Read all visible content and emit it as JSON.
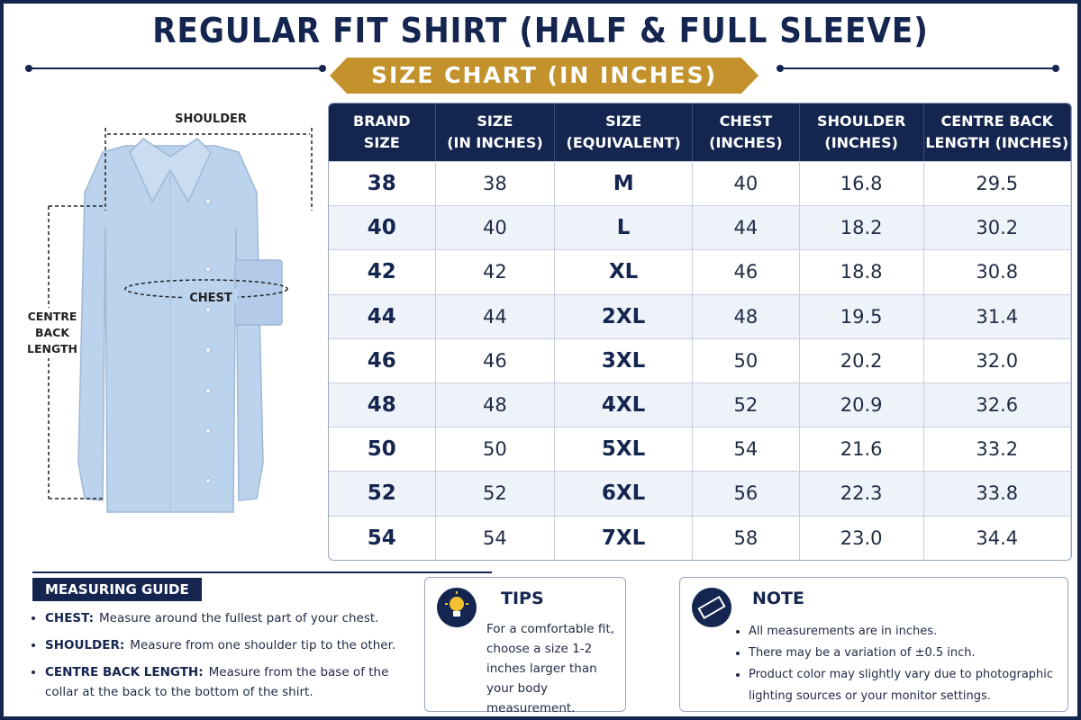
{
  "header": {
    "title": "REGULAR FIT SHIRT (HALF & FULL SLEEVE)",
    "subtitle": "SIZE CHART (IN INCHES)"
  },
  "diagram": {
    "shoulder": "SHOULDER",
    "chest": "CHEST",
    "length": [
      "CENTRE",
      "BACK",
      "LENGTH"
    ]
  },
  "table": {
    "headers": [
      [
        "BRAND",
        "SIZE"
      ],
      [
        "SIZE",
        "(IN INCHES)"
      ],
      [
        "SIZE",
        "(EQUIVALENT)"
      ],
      [
        "CHEST",
        "(INCHES)"
      ],
      [
        "SHOULDER",
        "(INCHES)"
      ],
      [
        "CENTRE BACK",
        "LENGTH (INCHES)"
      ]
    ],
    "rows": [
      [
        "38",
        "38",
        "M",
        "40",
        "16.8",
        "29.5"
      ],
      [
        "40",
        "40",
        "L",
        "44",
        "18.2",
        "30.2"
      ],
      [
        "42",
        "42",
        "XL",
        "46",
        "18.8",
        "30.8"
      ],
      [
        "44",
        "44",
        "2XL",
        "48",
        "19.5",
        "31.4"
      ],
      [
        "46",
        "46",
        "3XL",
        "50",
        "20.2",
        "32.0"
      ],
      [
        "48",
        "48",
        "4XL",
        "52",
        "20.9",
        "32.6"
      ],
      [
        "50",
        "50",
        "5XL",
        "54",
        "21.6",
        "33.2"
      ],
      [
        "52",
        "52",
        "6XL",
        "56",
        "22.3",
        "33.8"
      ],
      [
        "54",
        "54",
        "7XL",
        "58",
        "23.0",
        "34.4"
      ]
    ]
  },
  "guide": {
    "title": "MEASURING GUIDE",
    "items": [
      {
        "term": "CHEST:",
        "text": "Measure around the fullest part of your chest."
      },
      {
        "term": "SHOULDER:",
        "text": "Measure from one shoulder tip to the other."
      },
      {
        "term": "CENTRE BACK LENGTH:",
        "text": "Measure from the base of the collar at the back to the bottom of the shirt."
      }
    ]
  },
  "tips": {
    "title": "TIPS",
    "text": "For a comfortable fit, choose a size 1-2 inches larger than your body measurement."
  },
  "note": {
    "title": "NOTE",
    "items": [
      "All measurements are in inches.",
      "There may be a variation of ±0.5 inch.",
      "Product color may slightly vary due to photographic lighting sources or your monitor settings."
    ]
  }
}
